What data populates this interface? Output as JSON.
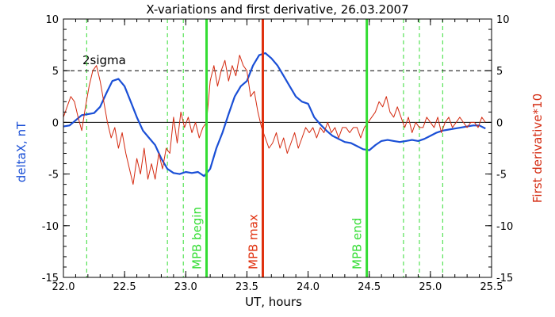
{
  "chart_data": {
    "type": "line",
    "title": "X-variations and first derivative, 26.03.2007",
    "xlabel": "UT, hours",
    "ylabel_left": "deltaX, nT",
    "ylabel_right": "First derivative*10",
    "xlim": [
      22.0,
      25.5
    ],
    "ylim": [
      -15,
      10
    ],
    "x_ticks": [
      "22.0",
      "22.5",
      "23.0",
      "23.5",
      "24.0",
      "24.5",
      "25.0",
      "25.5"
    ],
    "x_tick_values": [
      22.0,
      22.5,
      23.0,
      23.5,
      24.0,
      24.5,
      25.0,
      25.5
    ],
    "y_ticks": [
      "10",
      "5",
      "0",
      "-5",
      "-10",
      "-15"
    ],
    "y_tick_values": [
      10,
      5,
      0,
      -5,
      -10,
      -15
    ],
    "colors": {
      "deltaX": "#1a4fd6",
      "derivative": "#d42a10",
      "mpb_green": "#33dd33",
      "mpb_red": "#e0300e",
      "axes": "#000000"
    },
    "sigma_level": 5,
    "sigma_label": "2sigma",
    "vertical_lines": [
      {
        "x": 23.17,
        "label": "MPB begin",
        "color": "#33dd33"
      },
      {
        "x": 23.63,
        "label": "MPB max",
        "color": "#e0300e"
      },
      {
        "x": 24.48,
        "label": "MPB end",
        "color": "#33dd33"
      }
    ],
    "dashed_vertical_lines": [
      22.19,
      22.85,
      22.98,
      24.78,
      24.91,
      25.1
    ],
    "series": [
      {
        "name": "deltaX",
        "x": [
          22.0,
          22.05,
          22.1,
          22.15,
          22.2,
          22.25,
          22.3,
          22.35,
          22.4,
          22.45,
          22.5,
          22.55,
          22.6,
          22.65,
          22.7,
          22.75,
          22.8,
          22.85,
          22.9,
          22.95,
          23.0,
          23.05,
          23.1,
          23.15,
          23.2,
          23.25,
          23.3,
          23.35,
          23.4,
          23.45,
          23.5,
          23.55,
          23.6,
          23.65,
          23.7,
          23.75,
          23.8,
          23.85,
          23.9,
          23.95,
          24.0,
          24.05,
          24.1,
          24.15,
          24.2,
          24.25,
          24.3,
          24.35,
          24.4,
          24.45,
          24.5,
          24.55,
          24.6,
          24.65,
          24.7,
          24.75,
          24.8,
          24.85,
          24.9,
          24.95,
          25.0,
          25.05,
          25.1,
          25.15,
          25.2,
          25.25,
          25.3,
          25.35,
          25.4,
          25.45
        ],
        "values": [
          -0.4,
          -0.3,
          0.2,
          0.7,
          0.8,
          0.9,
          1.5,
          2.8,
          4.0,
          4.2,
          3.5,
          2.0,
          0.5,
          -0.8,
          -1.5,
          -2.2,
          -3.5,
          -4.5,
          -4.9,
          -5.0,
          -4.8,
          -4.9,
          -4.8,
          -5.2,
          -4.5,
          -2.5,
          -1.0,
          0.8,
          2.5,
          3.5,
          4.0,
          5.5,
          6.5,
          6.7,
          6.2,
          5.5,
          4.5,
          3.5,
          2.5,
          2.0,
          1.8,
          0.5,
          -0.2,
          -0.8,
          -1.3,
          -1.6,
          -1.9,
          -2.0,
          -2.3,
          -2.6,
          -2.7,
          -2.2,
          -1.8,
          -1.7,
          -1.8,
          -1.9,
          -1.8,
          -1.7,
          -1.8,
          -1.6,
          -1.3,
          -1.0,
          -0.8,
          -0.7,
          -0.6,
          -0.5,
          -0.4,
          -0.3,
          -0.3,
          -0.6
        ]
      },
      {
        "name": "derivative",
        "x": [
          22.0,
          22.03,
          22.06,
          22.09,
          22.12,
          22.15,
          22.18,
          22.21,
          22.24,
          22.27,
          22.3,
          22.33,
          22.36,
          22.39,
          22.42,
          22.45,
          22.48,
          22.51,
          22.54,
          22.57,
          22.6,
          22.63,
          22.66,
          22.69,
          22.72,
          22.75,
          22.78,
          22.81,
          22.84,
          22.87,
          22.9,
          22.93,
          22.96,
          22.99,
          23.02,
          23.05,
          23.08,
          23.11,
          23.14,
          23.17,
          23.2,
          23.23,
          23.26,
          23.29,
          23.32,
          23.35,
          23.38,
          23.41,
          23.44,
          23.47,
          23.5,
          23.53,
          23.56,
          23.59,
          23.62,
          23.65,
          23.68,
          23.71,
          23.74,
          23.77,
          23.8,
          23.83,
          23.86,
          23.89,
          23.92,
          23.95,
          23.98,
          24.01,
          24.04,
          24.07,
          24.1,
          24.13,
          24.16,
          24.19,
          24.22,
          24.25,
          24.28,
          24.31,
          24.34,
          24.37,
          24.4,
          24.43,
          24.46,
          24.49,
          24.52,
          24.55,
          24.58,
          24.61,
          24.64,
          24.67,
          24.7,
          24.73,
          24.76,
          24.79,
          24.82,
          24.85,
          24.88,
          24.91,
          24.94,
          24.97,
          25.0,
          25.03,
          25.06,
          25.09,
          25.12,
          25.15,
          25.18,
          25.21,
          25.24,
          25.27,
          25.3,
          25.33,
          25.36,
          25.39,
          25.42,
          25.45
        ],
        "values": [
          0.5,
          1.5,
          2.5,
          2.0,
          0.5,
          -0.8,
          1.5,
          3.5,
          5.0,
          5.5,
          4.0,
          2.0,
          0.0,
          -1.5,
          -0.5,
          -2.5,
          -1.0,
          -3.0,
          -4.5,
          -6.0,
          -3.5,
          -5.0,
          -2.5,
          -5.5,
          -4.0,
          -5.5,
          -3.0,
          -4.5,
          -2.5,
          -3.0,
          0.5,
          -2.0,
          1.0,
          -0.5,
          0.5,
          -1.0,
          0.0,
          -1.5,
          -0.5,
          0.0,
          4.0,
          5.5,
          3.5,
          5.0,
          6.0,
          4.0,
          5.5,
          4.5,
          6.5,
          5.5,
          5.0,
          2.5,
          3.0,
          1.0,
          -0.5,
          -1.5,
          -2.5,
          -2.0,
          -1.0,
          -2.5,
          -1.5,
          -3.0,
          -2.0,
          -1.0,
          -2.5,
          -1.5,
          -0.5,
          -1.0,
          -0.5,
          -1.5,
          -0.5,
          -1.0,
          0.0,
          -1.0,
          -0.5,
          -1.5,
          -0.5,
          -0.5,
          -1.0,
          -0.5,
          -0.5,
          -1.5,
          -0.5,
          0.0,
          0.5,
          1.0,
          2.0,
          1.5,
          2.5,
          1.0,
          0.5,
          1.5,
          0.5,
          -0.5,
          0.5,
          -1.0,
          0.0,
          -0.5,
          -0.5,
          0.5,
          0.0,
          -0.5,
          0.5,
          -1.0,
          0.0,
          0.5,
          -0.5,
          0.0,
          0.5,
          0.0,
          -0.5,
          0.0,
          0.0,
          -0.5,
          0.5,
          0.0
        ]
      }
    ]
  }
}
